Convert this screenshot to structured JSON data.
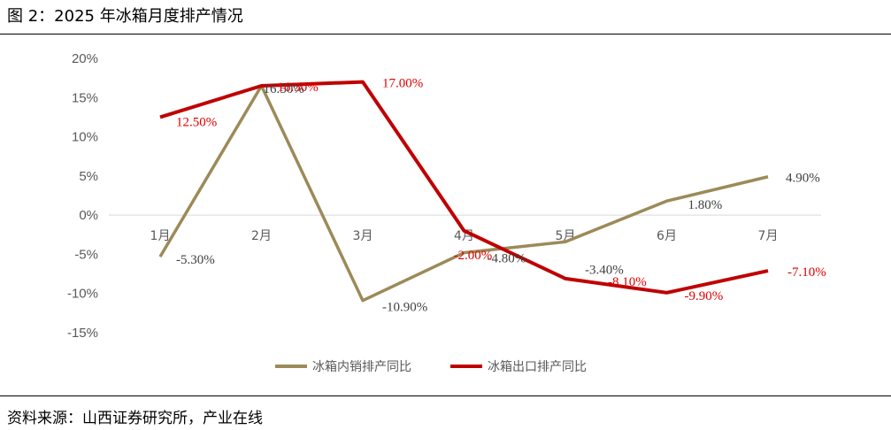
{
  "header": {
    "title": "图 2：2025 年冰箱月度排产情况"
  },
  "footer": {
    "source": "资料来源：山西证券研究所，产业在线"
  },
  "chart_data": {
    "type": "line",
    "title": "",
    "xlabel": "",
    "ylabel": "",
    "categories": [
      "1月",
      "2月",
      "3月",
      "4月",
      "5月",
      "6月",
      "7月"
    ],
    "ylim": [
      -15,
      20
    ],
    "yticks": [
      20,
      15,
      10,
      5,
      0,
      -5,
      -10,
      -15
    ],
    "ytick_labels": [
      "20%",
      "15%",
      "10%",
      "5%",
      "0%",
      "-5%",
      "-10%",
      "-15%"
    ],
    "grid": false,
    "legend": "bottom",
    "series": [
      {
        "name": "冰箱内销排产同比",
        "color": "#9C8A58",
        "values": [
          -5.3,
          16.5,
          -10.9,
          -4.8,
          -3.4,
          1.8,
          4.9
        ],
        "labels": [
          "-5.30%",
          "16.50%",
          "-10.90%",
          "-4.80%",
          "-3.40%",
          "1.80%",
          "4.90%"
        ]
      },
      {
        "name": "冰箱出口排产同比",
        "color": "#C00000",
        "values": [
          12.5,
          16.5,
          17.0,
          -2.0,
          -8.1,
          -9.9,
          -7.1
        ],
        "labels": [
          "12.50%",
          "16.50%",
          "17.00%",
          "-2.00%",
          "-8.10%",
          "-9.90%",
          "-7.10%"
        ]
      }
    ]
  }
}
